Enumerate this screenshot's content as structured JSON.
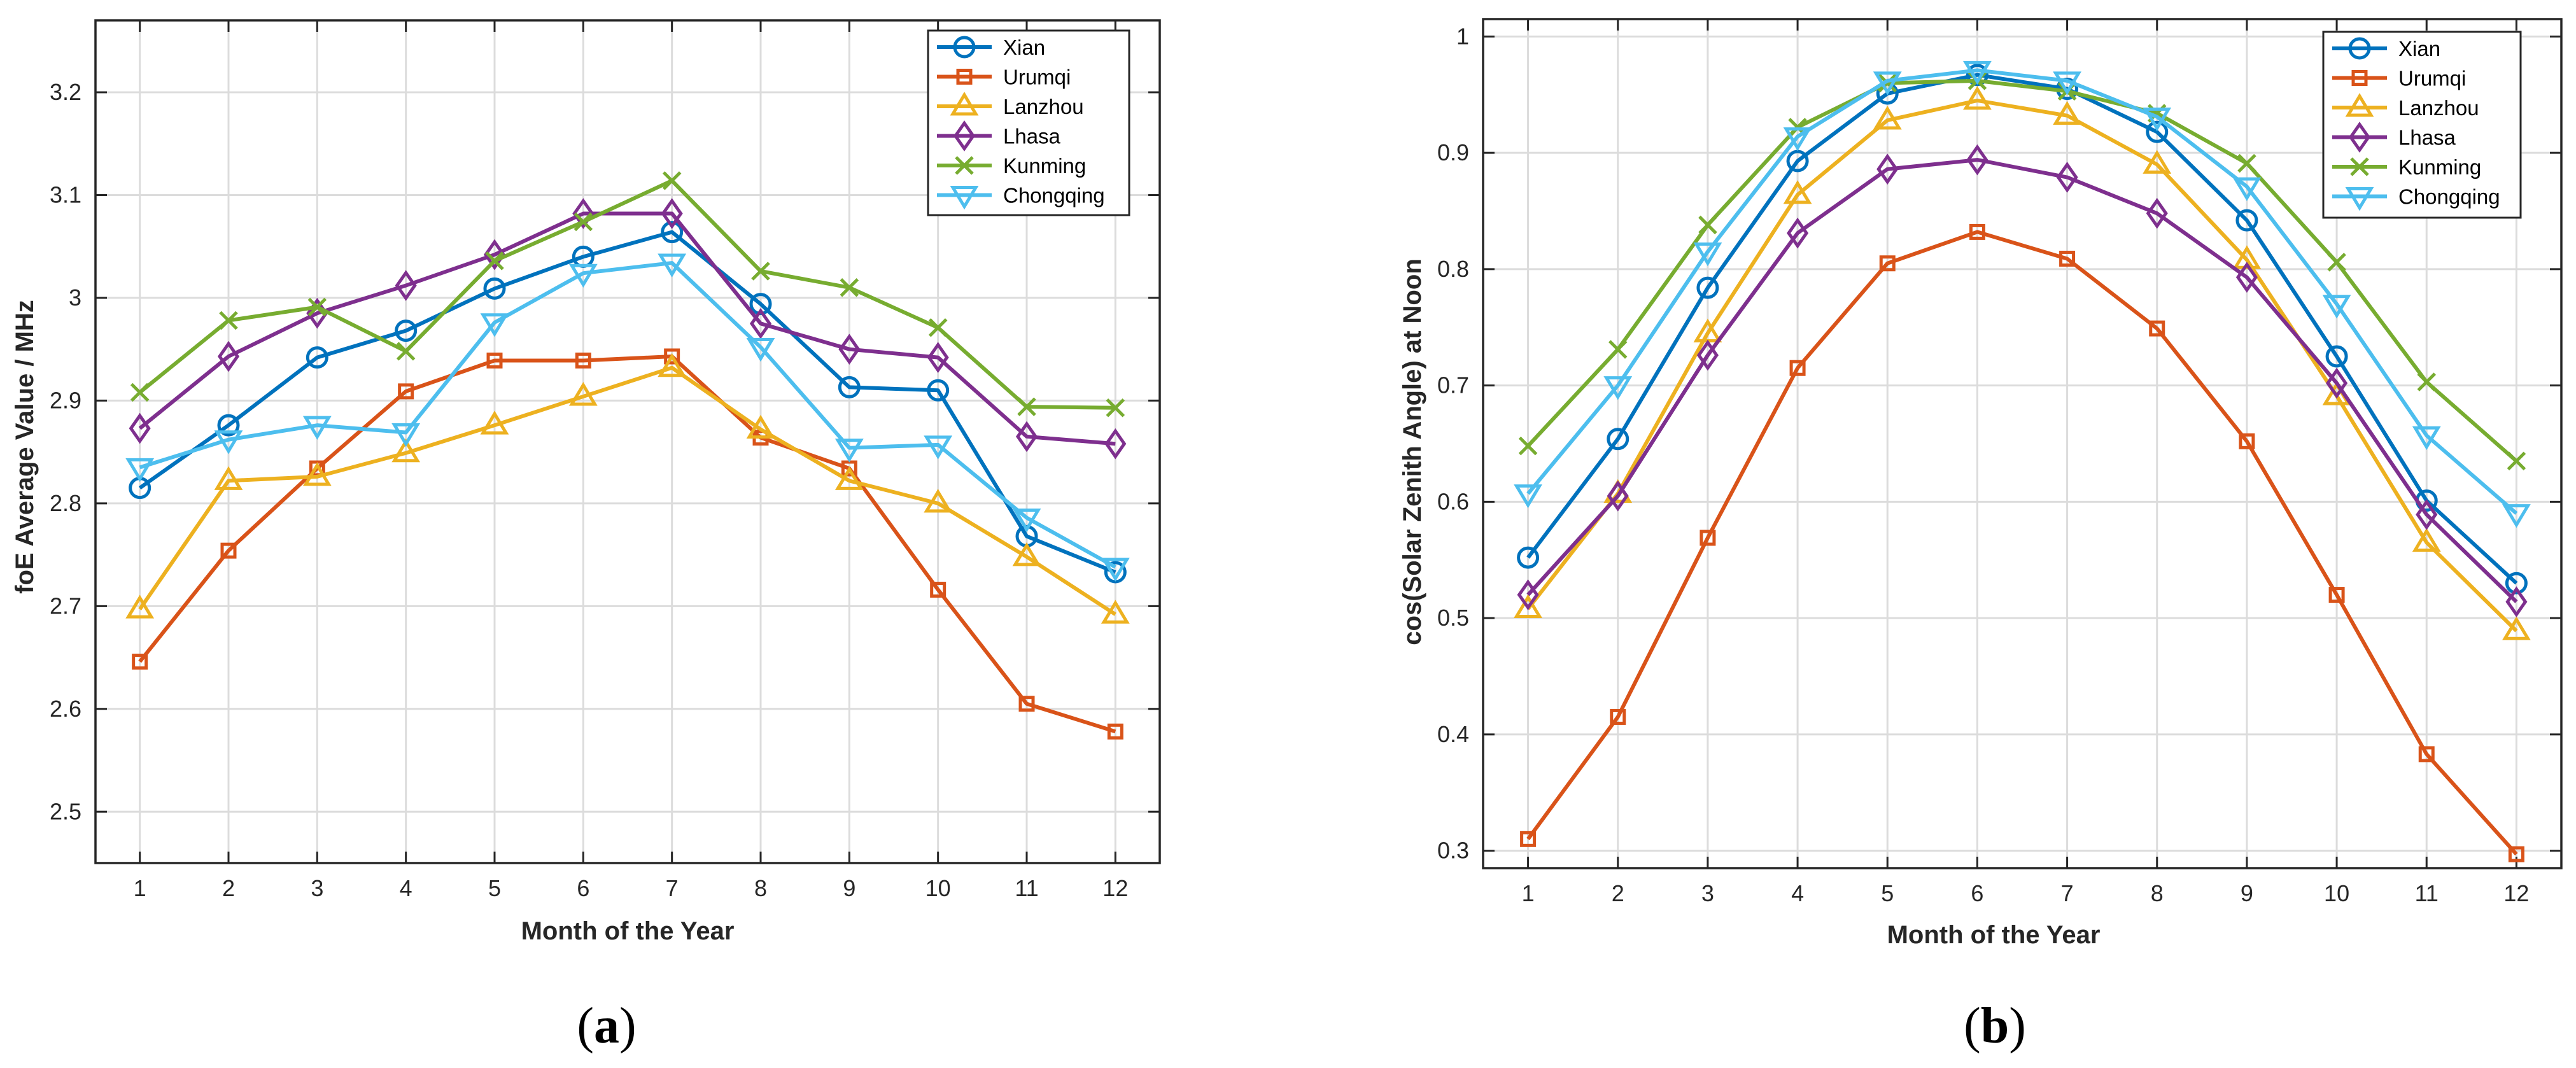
{
  "colors": {
    "Xian": "#0072BD",
    "Urumqi": "#D95319",
    "Lanzhou": "#EDB120",
    "Lhasa": "#7E2F8E",
    "Kunming": "#77AC30",
    "Chongqing": "#4DBEEE"
  },
  "chart_data": [
    {
      "type": "line",
      "panel_label": "a",
      "title": "",
      "xlabel": "Month of the Year",
      "ylabel": "foE Average Value / MHz",
      "x": [
        1,
        2,
        3,
        4,
        5,
        6,
        7,
        8,
        9,
        10,
        11,
        12
      ],
      "xlim": [
        0.5,
        12.5
      ],
      "ylim": [
        2.45,
        3.27
      ],
      "yticks": [
        2.5,
        2.6,
        2.7,
        2.8,
        2.9,
        3.0,
        3.1,
        3.2
      ],
      "ytick_labels": [
        "2.5",
        "2.6",
        "2.7",
        "2.8",
        "2.9",
        "3",
        "3.1",
        "3.2"
      ],
      "grid": true,
      "legend": "top-right",
      "series": [
        {
          "name": "Xian",
          "marker": "circle",
          "values": [
            2.815,
            2.876,
            2.942,
            2.968,
            3.009,
            3.04,
            3.064,
            2.994,
            2.913,
            2.91,
            2.768,
            2.733
          ]
        },
        {
          "name": "Urumqi",
          "marker": "square",
          "values": [
            2.646,
            2.754,
            2.834,
            2.909,
            2.939,
            2.939,
            2.943,
            2.864,
            2.834,
            2.716,
            2.605,
            2.578
          ]
        },
        {
          "name": "Lanzhou",
          "marker": "triangle",
          "values": [
            2.697,
            2.822,
            2.826,
            2.849,
            2.876,
            2.904,
            2.932,
            2.872,
            2.822,
            2.8,
            2.748,
            2.692
          ]
        },
        {
          "name": "Lhasa",
          "marker": "diamond",
          "values": [
            2.873,
            2.943,
            2.985,
            3.012,
            3.042,
            3.082,
            3.082,
            2.975,
            2.95,
            2.942,
            2.865,
            2.858
          ]
        },
        {
          "name": "Kunming",
          "marker": "x",
          "values": [
            2.908,
            2.978,
            2.991,
            2.948,
            3.036,
            3.074,
            3.114,
            3.026,
            3.01,
            2.971,
            2.894,
            2.893
          ]
        },
        {
          "name": "Chongqing",
          "marker": "triangle-down",
          "values": [
            2.835,
            2.862,
            2.876,
            2.869,
            2.976,
            3.024,
            3.034,
            2.952,
            2.854,
            2.857,
            2.786,
            2.738
          ]
        }
      ]
    },
    {
      "type": "line",
      "panel_label": "b",
      "title": "",
      "xlabel": "Month of the Year",
      "ylabel": "cos(Solar Zenith Angle) at Noon",
      "x": [
        1,
        2,
        3,
        4,
        5,
        6,
        7,
        8,
        9,
        10,
        11,
        12
      ],
      "xlim": [
        0.5,
        12.5
      ],
      "ylim": [
        0.285,
        1.015
      ],
      "yticks": [
        0.3,
        0.4,
        0.5,
        0.6,
        0.7,
        0.8,
        0.9,
        1.0
      ],
      "ytick_labels": [
        "0.3",
        "0.4",
        "0.5",
        "0.6",
        "0.7",
        "0.8",
        "0.9",
        "1"
      ],
      "grid": true,
      "legend": "top-right",
      "series": [
        {
          "name": "Xian",
          "marker": "circle",
          "values": [
            0.552,
            0.654,
            0.784,
            0.893,
            0.951,
            0.967,
            0.955,
            0.918,
            0.842,
            0.725,
            0.601,
            0.53
          ]
        },
        {
          "name": "Urumqi",
          "marker": "square",
          "values": [
            0.31,
            0.415,
            0.569,
            0.715,
            0.805,
            0.832,
            0.809,
            0.749,
            0.652,
            0.52,
            0.383,
            0.297
          ]
        },
        {
          "name": "Lanzhou",
          "marker": "triangle",
          "values": [
            0.508,
            0.607,
            0.745,
            0.864,
            0.928,
            0.945,
            0.932,
            0.89,
            0.808,
            0.691,
            0.565,
            0.489
          ]
        },
        {
          "name": "Lhasa",
          "marker": "diamond",
          "values": [
            0.52,
            0.605,
            0.726,
            0.831,
            0.886,
            0.894,
            0.879,
            0.848,
            0.793,
            0.702,
            0.589,
            0.514
          ]
        },
        {
          "name": "Kunming",
          "marker": "x",
          "values": [
            0.648,
            0.731,
            0.838,
            0.922,
            0.96,
            0.962,
            0.953,
            0.934,
            0.891,
            0.806,
            0.703,
            0.635
          ]
        },
        {
          "name": "Chongqing",
          "marker": "triangle-down",
          "values": [
            0.607,
            0.7,
            0.815,
            0.914,
            0.962,
            0.971,
            0.962,
            0.931,
            0.871,
            0.77,
            0.657,
            0.59
          ]
        }
      ]
    }
  ]
}
